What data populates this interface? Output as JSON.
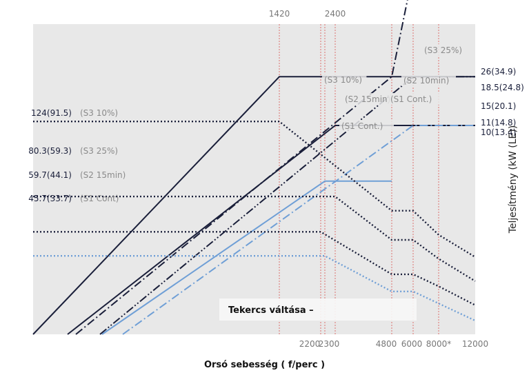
{
  "chart_data": {
    "type": "line",
    "xlabel": "Orsó sebesség ( f/perc )",
    "ylabel": "Teljesítmény (kW (LE))",
    "x_ticks_bottom": [
      "2200",
      "2300",
      "4800",
      "6000",
      "8000*",
      "12000"
    ],
    "x_ticks_top": [
      "1420",
      "2400"
    ],
    "annotation": "Tekercs váltása –",
    "right_labels": [
      "26(34.9)",
      "18.5(24.8)",
      "15(20.1)",
      "11(14.8)",
      "10(13.4)"
    ],
    "left_labels": [
      {
        "value": "124(91.5)",
        "mode": "(S3 10%)"
      },
      {
        "value": "80.3(59.3)",
        "mode": "(S3 25%)"
      },
      {
        "value": "59.7(44.1)",
        "mode": "(S2 15min)"
      },
      {
        "value": "45.7(33.7)",
        "mode": "(S1 Cont)"
      }
    ],
    "curve_labels": [
      "(S3 25%)",
      "(S3 10%)",
      "(S2 10min)",
      "(S2 15min)",
      "(S1 Cont.)",
      "(S1 Cont.)"
    ],
    "power_series": [
      {
        "name": "(S3 10%)",
        "style": "solid",
        "color": "#1a1f3a",
        "points": [
          [
            0,
            0.0
          ],
          [
            1420,
            18.5
          ],
          [
            6000,
            18.5
          ],
          [
            8000,
            18.5
          ],
          [
            12000,
            18.5
          ]
        ]
      },
      {
        "name": "(S2 15min)",
        "style": "solid",
        "color": "#1a1f3a",
        "points": [
          [
            0,
            0.0
          ],
          [
            2400,
            15.0
          ],
          [
            4800,
            15.0
          ],
          [
            6000,
            15.0
          ],
          [
            12000,
            15.0
          ]
        ]
      },
      {
        "name": "(S1 Cont.)",
        "style": "solid",
        "color": "#6f9fd6",
        "points": [
          [
            0,
            0.0
          ],
          [
            2300,
            11.0
          ],
          [
            4800,
            11.0
          ]
        ]
      },
      {
        "name": "(S3 25%)",
        "style": "dashdot",
        "color": "#1a1f3a",
        "points": [
          [
            0,
            0.0
          ],
          [
            4800,
            18.5
          ],
          [
            6000,
            26.0
          ],
          [
            8000,
            26.0
          ],
          [
            12000,
            26.0
          ]
        ]
      },
      {
        "name": "(S2 10min)",
        "style": "dashdotdot",
        "color": "#1a1f3a",
        "points": [
          [
            0,
            0.0
          ],
          [
            6000,
            18.5
          ],
          [
            12000,
            18.5
          ]
        ]
      },
      {
        "name": "(S1 Cont.)",
        "style": "dashdot",
        "color": "#6f9fd6",
        "points": [
          [
            0,
            0.0
          ],
          [
            6000,
            15.0
          ],
          [
            12000,
            15.0
          ]
        ]
      }
    ],
    "torque_series": [
      {
        "name": "(S3 10%)",
        "style": "dotted",
        "color": "#1a1f3a",
        "points": [
          [
            0,
            124
          ],
          [
            1420,
            124
          ],
          [
            4800,
            72
          ],
          [
            6000,
            72
          ],
          [
            8000,
            58
          ],
          [
            12000,
            45
          ]
        ]
      },
      {
        "name": "(S3 25%)",
        "style": "dotted",
        "color": "#1a1f3a",
        "points": [
          [
            0,
            80.3
          ],
          [
            2400,
            80.3
          ],
          [
            4800,
            55
          ],
          [
            6000,
            55
          ],
          [
            8000,
            44
          ],
          [
            12000,
            31
          ]
        ]
      },
      {
        "name": "(S2 15min)",
        "style": "dotted",
        "color": "#1a1f3a",
        "points": [
          [
            0,
            59.7
          ],
          [
            2200,
            59.7
          ],
          [
            4800,
            35
          ],
          [
            6000,
            35
          ],
          [
            8000,
            28
          ],
          [
            12000,
            17
          ]
        ]
      },
      {
        "name": "(S1 Cont)",
        "style": "dotted",
        "color": "#6f9fd6",
        "points": [
          [
            0,
            45.7
          ],
          [
            2300,
            45.7
          ],
          [
            4800,
            25
          ],
          [
            6000,
            25
          ],
          [
            8000,
            18
          ],
          [
            12000,
            8
          ]
        ]
      }
    ],
    "colors": {
      "plot_background": "#e8e8e8",
      "dark_series": "#1a1f3a",
      "light_series": "#6f9fd6",
      "reference_lines": "#d9534f"
    }
  }
}
